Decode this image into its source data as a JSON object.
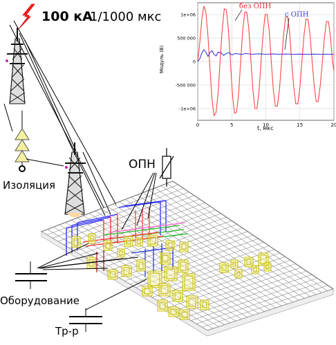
{
  "header": {
    "strike_value": "100 кА",
    "strike_waveform": "1/1000 мкс"
  },
  "labels": {
    "insulation": "Изоляция",
    "arrester": "ОПН",
    "equipment": "Оборудование",
    "transformer": "Тр-р"
  },
  "chart_data": {
    "type": "line",
    "title": "",
    "xlabel": "t, мкс",
    "ylabel": "Модуль (В)",
    "xlim": [
      0,
      20
    ],
    "ylim": [
      -1250000,
      1250000
    ],
    "x_ticks": [
      "0",
      "5",
      "10",
      "15",
      "20"
    ],
    "y_ticks": [
      "-1e+06",
      "-500 000",
      "0",
      "500 000",
      "1e+06"
    ],
    "y_tick_values": [
      -1000000,
      -500000,
      0,
      500000,
      1000000
    ],
    "grid": true,
    "series": [
      {
        "name": "без ОПН",
        "color": "#ff4444",
        "x": [
          0,
          0.3,
          0.6,
          0.9,
          1.2,
          1.5,
          1.8,
          2.1,
          2.4,
          2.7,
          3.0,
          3.3,
          3.6,
          3.9,
          4.2,
          4.5,
          4.8,
          5.1,
          5.4,
          5.7,
          6.0,
          6.3,
          6.6,
          6.9,
          7.2,
          7.5,
          7.8,
          8.1,
          8.4,
          8.7,
          9.0,
          9.3,
          9.6,
          9.9,
          10.2,
          10.5,
          10.8,
          11.1,
          11.4,
          11.7,
          12.0,
          12.3,
          12.6,
          12.9,
          13.2,
          13.5,
          13.8,
          14.1,
          14.4,
          14.7,
          15.0,
          15.3,
          15.6,
          15.9,
          16.2,
          16.5,
          16.8,
          17.1,
          17.4,
          17.7,
          18.0,
          18.3,
          18.6,
          18.9,
          19.2,
          19.5,
          19.8,
          20.0
        ],
        "values": [
          0,
          400000,
          900000,
          1180000,
          1050000,
          550000,
          -150000,
          -800000,
          -1150000,
          -1080000,
          -650000,
          50000,
          700000,
          1120000,
          1100000,
          700000,
          0,
          -700000,
          -1100000,
          -1080000,
          -700000,
          0,
          650000,
          1050000,
          1050000,
          700000,
          50000,
          -600000,
          -1000000,
          -1000000,
          -650000,
          0,
          600000,
          1000000,
          1000000,
          650000,
          0,
          -600000,
          -950000,
          -950000,
          -600000,
          0,
          550000,
          950000,
          950000,
          600000,
          0,
          -550000,
          -900000,
          -900000,
          -550000,
          0,
          550000,
          900000,
          900000,
          550000,
          0,
          -500000,
          -850000,
          -850000,
          -500000,
          0,
          500000,
          850000,
          850000,
          500000,
          0,
          -200000
        ]
      },
      {
        "name": "с ОПН",
        "color": "#3a3ad8",
        "x": [
          0,
          0.3,
          0.6,
          0.9,
          1.2,
          1.5,
          1.8,
          2.1,
          2.4,
          2.7,
          3.0,
          3.4,
          3.8,
          4.2,
          4.6,
          5.0,
          5.5,
          6.0,
          6.5,
          7.0,
          8.0,
          9.0,
          10.0,
          11.0,
          12.0,
          13.0,
          14.0,
          15.0,
          16.0,
          17.0,
          18.0,
          19.0,
          20.0
        ],
        "values": [
          0,
          60000,
          180000,
          250000,
          200000,
          110000,
          190000,
          230000,
          150000,
          120000,
          200000,
          190000,
          130000,
          170000,
          190000,
          140000,
          170000,
          160000,
          150000,
          170000,
          155000,
          165000,
          155000,
          160000,
          155000,
          160000,
          155000,
          158000,
          155000,
          157000,
          155000,
          156000,
          155000
        ]
      }
    ]
  }
}
